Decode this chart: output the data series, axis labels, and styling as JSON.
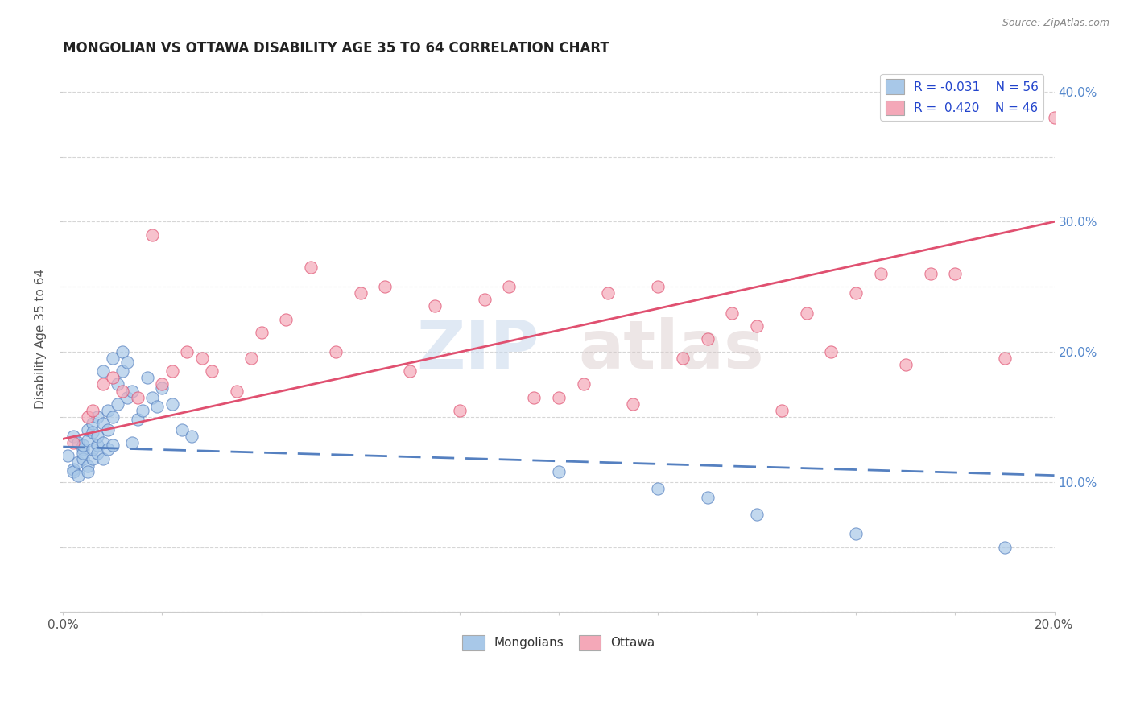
{
  "title": "MONGOLIAN VS OTTAWA DISABILITY AGE 35 TO 64 CORRELATION CHART",
  "source": "Source: ZipAtlas.com",
  "ylabel_label": "Disability Age 35 to 64",
  "xlim": [
    0.0,
    0.2
  ],
  "ylim": [
    0.0,
    0.42
  ],
  "ytick_labels": [
    "",
    "",
    "10.0%",
    "",
    "20.0%",
    "",
    "30.0%",
    "",
    "40.0%"
  ],
  "mongolian_R": -0.031,
  "mongolian_N": 56,
  "ottawa_R": 0.42,
  "ottawa_N": 46,
  "mongolian_color": "#a8c8e8",
  "ottawa_color": "#f4a8b8",
  "mongolian_line_color": "#5580c0",
  "ottawa_line_color": "#e05070",
  "watermark_1": "ZIP",
  "watermark_2": "atlas",
  "legend_mongolian_label": "Mongolians",
  "legend_ottawa_label": "Ottawa",
  "mongolian_scatter_x": [
    0.001,
    0.002,
    0.002,
    0.002,
    0.003,
    0.003,
    0.003,
    0.004,
    0.004,
    0.004,
    0.004,
    0.005,
    0.005,
    0.005,
    0.005,
    0.006,
    0.006,
    0.006,
    0.006,
    0.007,
    0.007,
    0.007,
    0.007,
    0.008,
    0.008,
    0.008,
    0.008,
    0.009,
    0.009,
    0.009,
    0.01,
    0.01,
    0.01,
    0.011,
    0.011,
    0.012,
    0.012,
    0.013,
    0.013,
    0.014,
    0.014,
    0.015,
    0.016,
    0.017,
    0.018,
    0.019,
    0.02,
    0.022,
    0.024,
    0.026,
    0.1,
    0.12,
    0.13,
    0.14,
    0.16,
    0.19
  ],
  "mongolian_scatter_y": [
    0.12,
    0.11,
    0.135,
    0.108,
    0.13,
    0.115,
    0.105,
    0.125,
    0.118,
    0.122,
    0.128,
    0.132,
    0.112,
    0.14,
    0.108,
    0.145,
    0.138,
    0.118,
    0.125,
    0.15,
    0.128,
    0.135,
    0.122,
    0.185,
    0.145,
    0.13,
    0.118,
    0.155,
    0.14,
    0.125,
    0.195,
    0.15,
    0.128,
    0.16,
    0.175,
    0.2,
    0.185,
    0.165,
    0.192,
    0.17,
    0.13,
    0.148,
    0.155,
    0.18,
    0.165,
    0.158,
    0.172,
    0.16,
    0.14,
    0.135,
    0.108,
    0.095,
    0.088,
    0.075,
    0.06,
    0.05
  ],
  "ottawa_scatter_x": [
    0.002,
    0.005,
    0.006,
    0.008,
    0.01,
    0.012,
    0.015,
    0.018,
    0.02,
    0.022,
    0.025,
    0.028,
    0.03,
    0.035,
    0.038,
    0.04,
    0.045,
    0.05,
    0.055,
    0.06,
    0.065,
    0.07,
    0.075,
    0.08,
    0.085,
    0.09,
    0.095,
    0.1,
    0.105,
    0.11,
    0.115,
    0.12,
    0.125,
    0.13,
    0.135,
    0.14,
    0.145,
    0.15,
    0.155,
    0.16,
    0.165,
    0.17,
    0.175,
    0.18,
    0.19,
    0.2
  ],
  "ottawa_scatter_y": [
    0.13,
    0.15,
    0.155,
    0.175,
    0.18,
    0.17,
    0.165,
    0.29,
    0.175,
    0.185,
    0.2,
    0.195,
    0.185,
    0.17,
    0.195,
    0.215,
    0.225,
    0.265,
    0.2,
    0.245,
    0.25,
    0.185,
    0.235,
    0.155,
    0.24,
    0.25,
    0.165,
    0.165,
    0.175,
    0.245,
    0.16,
    0.25,
    0.195,
    0.21,
    0.23,
    0.22,
    0.155,
    0.23,
    0.2,
    0.245,
    0.26,
    0.19,
    0.26,
    0.26,
    0.195,
    0.38
  ]
}
